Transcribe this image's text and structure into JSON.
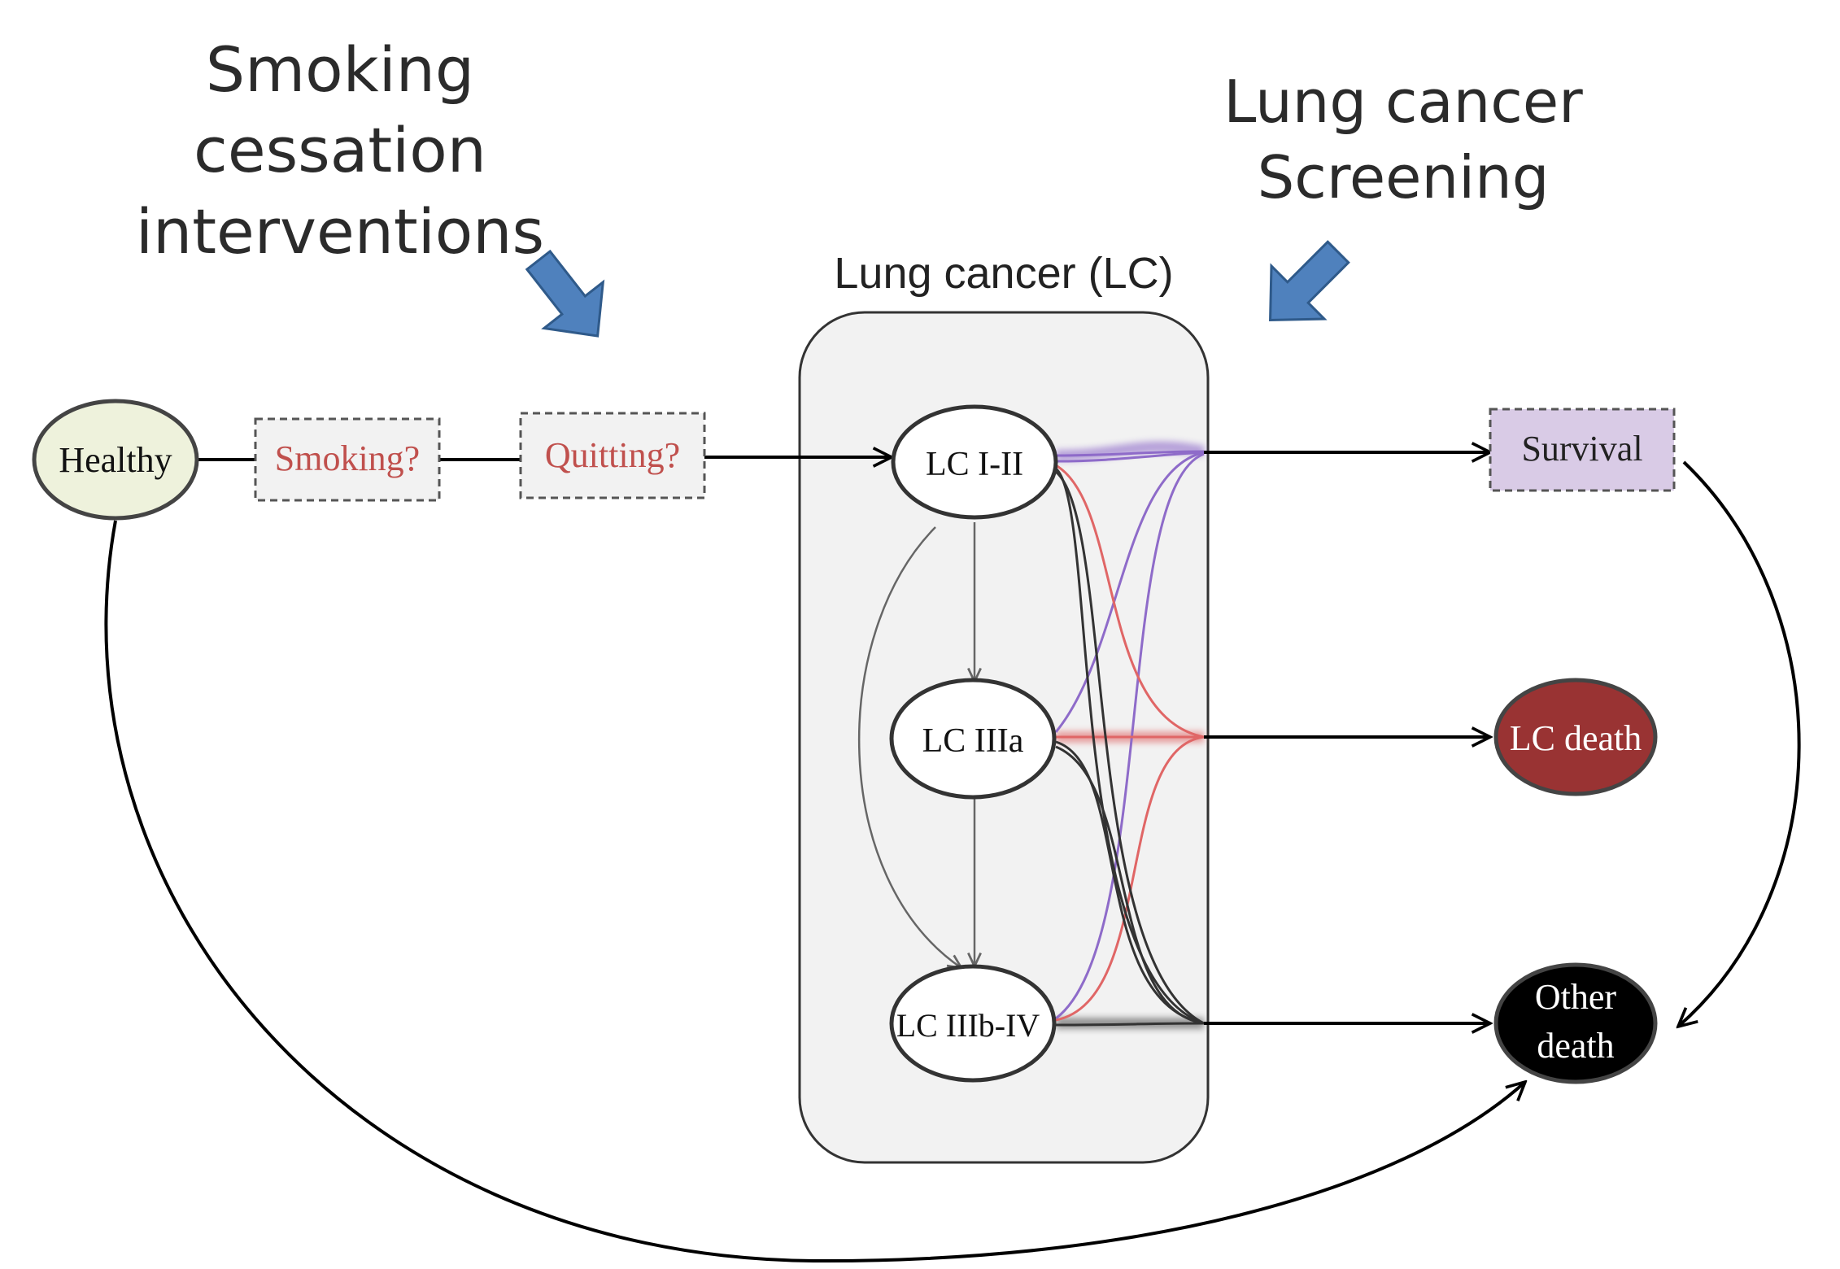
{
  "headings": {
    "smoking": [
      "Smoking",
      "cessation",
      "interventions"
    ],
    "screening": [
      "Lung cancer",
      "Screening"
    ],
    "lc_group": "Lung cancer (LC)"
  },
  "nodes": {
    "healthy": "Healthy",
    "smoking": "Smoking?",
    "quitting": "Quitting?",
    "lc1": "LC I-II",
    "lc3a": "LC IIIa",
    "lc3b": "LC IIIb-IV",
    "survival": "Survival",
    "lc_death": "LC death",
    "other_death": [
      "Other",
      "death"
    ]
  },
  "colors": {
    "healthy_fill": "#eef2dc",
    "dashed_box_fill": "#f2f2f2",
    "dashed_label": "#c0504d",
    "survival_fill": "#d9cbe6",
    "lc_death_fill": "#993333",
    "other_death_fill": "#000000",
    "intervention_arrow": "#4f81bd",
    "purple_flow": "#8e6bc9",
    "red_flow": "#e06666",
    "black_flow": "#333333",
    "group_fill": "#f2f2f2"
  },
  "icons": {
    "smoking_arrow": "blue-arrow-icon",
    "screening_arrow": "blue-arrow-icon"
  }
}
